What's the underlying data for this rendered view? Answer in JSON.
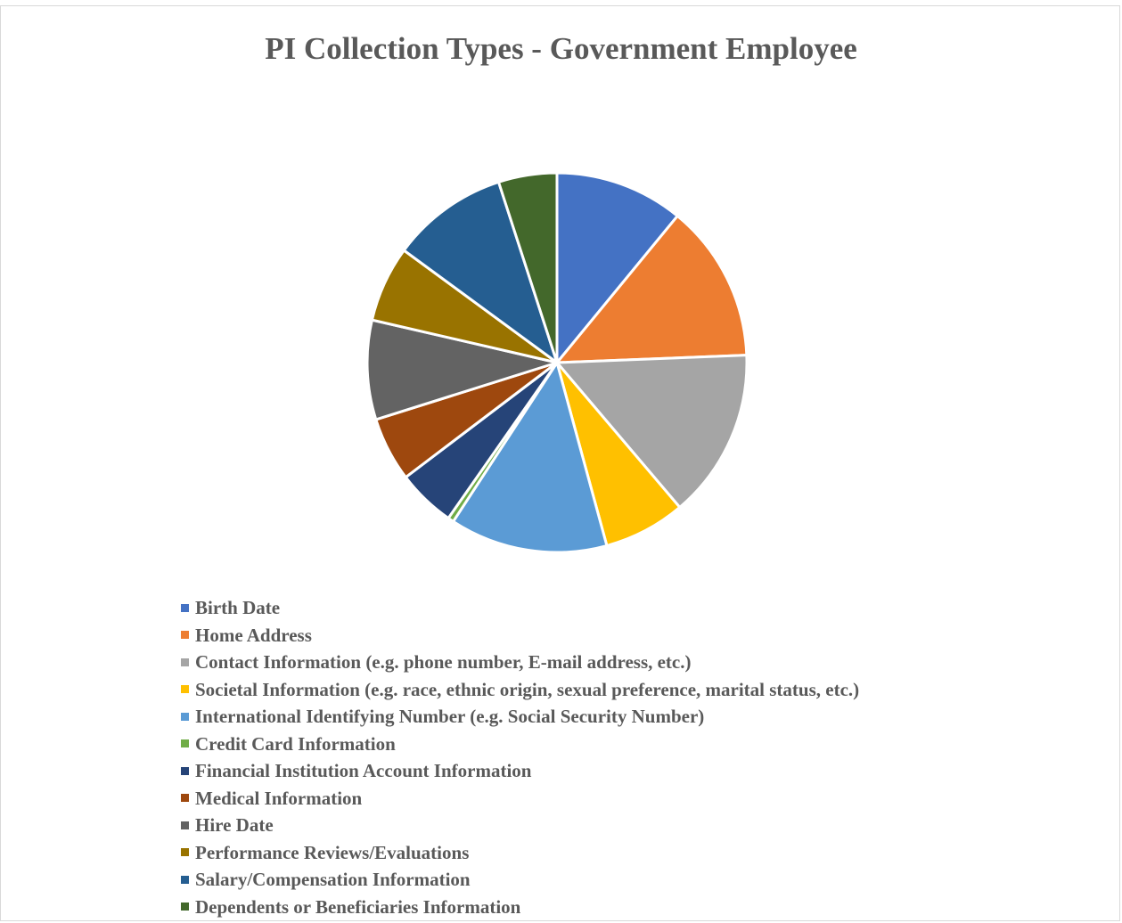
{
  "chart_data": {
    "type": "pie",
    "title": "PI Collection Types - Government Employee",
    "legend_position": "bottom",
    "slices": [
      {
        "label": "Birth Date",
        "value": 11.0,
        "color": "#4472C4"
      },
      {
        "label": "Home Address",
        "value": 13.5,
        "color": "#ED7D31"
      },
      {
        "label": "Contact Information (e.g. phone number, E-mail address, etc.)",
        "value": 14.5,
        "color": "#A5A5A5"
      },
      {
        "label": "Societal Information (e.g. race, ethnic origin, sexual preference, marital status, etc.)",
        "value": 7.0,
        "color": "#FFC000"
      },
      {
        "label": "International Identifying Number (e.g. Social Security Number)",
        "value": 13.5,
        "color": "#5B9BD5"
      },
      {
        "label": "Credit Card Information",
        "value": 0.5,
        "color": "#70AD47"
      },
      {
        "label": "Financial Institution Account Information",
        "value": 5.0,
        "color": "#264478"
      },
      {
        "label": "Medical Information",
        "value": 5.5,
        "color": "#9E480E"
      },
      {
        "label": "Hire Date",
        "value": 8.5,
        "color": "#636363"
      },
      {
        "label": "Performance Reviews/Evaluations",
        "value": 6.5,
        "color": "#997300"
      },
      {
        "label": "Salary/Compensation Information",
        "value": 10.0,
        "color": "#255E91"
      },
      {
        "label": "Dependents or Beneficiaries Information",
        "value": 5.0,
        "color": "#43682B"
      }
    ]
  }
}
